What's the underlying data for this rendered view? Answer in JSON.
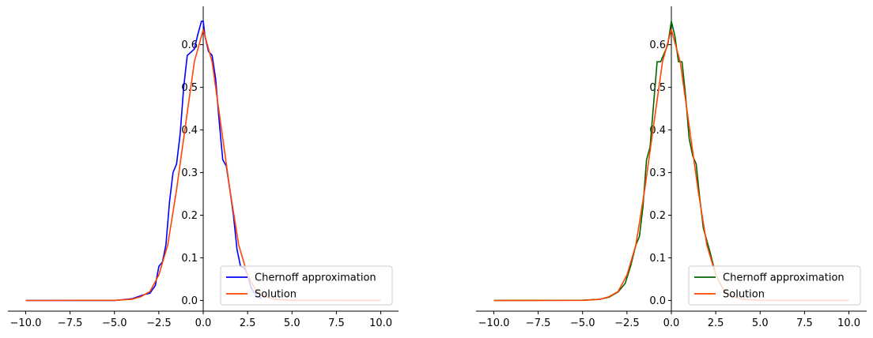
{
  "chart_data": [
    {
      "type": "line",
      "title": "",
      "xlabel": "",
      "ylabel": "",
      "xlim": [
        -11,
        11
      ],
      "ylim": [
        -0.025,
        0.69
      ],
      "xticks": [
        -10.0,
        -7.5,
        -5.0,
        -2.5,
        0.0,
        2.5,
        5.0,
        7.5,
        10.0
      ],
      "xtick_labels": [
        "−10.0",
        "−7.5",
        "−5.0",
        "−2.5",
        "0.0",
        "2.5",
        "5.0",
        "7.5",
        "10.0"
      ],
      "yticks": [
        0.0,
        0.1,
        0.2,
        0.3,
        0.4,
        0.5,
        0.6
      ],
      "ytick_labels": [
        "0.0",
        "0.1",
        "0.2",
        "0.3",
        "0.4",
        "0.5",
        "0.6"
      ],
      "grid": false,
      "legend_position": "lower-right",
      "series": [
        {
          "name": "Chernoff approximation",
          "color": "#0000ff",
          "x": [
            -10,
            -5,
            -4,
            -3.6,
            -3.3,
            -3.0,
            -2.7,
            -2.5,
            -2.3,
            -2.1,
            -1.9,
            -1.7,
            -1.5,
            -1.3,
            -1.1,
            -0.9,
            -0.7,
            -0.5,
            -0.3,
            -0.1,
            0.0,
            0.1,
            0.3,
            0.5,
            0.7,
            0.9,
            1.1,
            1.3,
            1.5,
            1.7,
            1.9,
            2.1,
            2.3,
            2.5,
            2.7,
            3.0,
            3.3
          ],
          "y": [
            0.0,
            0.0,
            0.004,
            0.01,
            0.014,
            0.017,
            0.035,
            0.08,
            0.09,
            0.13,
            0.23,
            0.3,
            0.32,
            0.39,
            0.5,
            0.575,
            0.582,
            0.59,
            0.625,
            0.655,
            0.655,
            0.62,
            0.584,
            0.575,
            0.52,
            0.42,
            0.33,
            0.315,
            0.26,
            0.2,
            0.12,
            0.08,
            0.077,
            0.06,
            0.03,
            0.01,
            0.005
          ]
        },
        {
          "name": "Solution",
          "color": "#ff4500",
          "x": [
            -10,
            -5,
            -4,
            -3.5,
            -3.0,
            -2.5,
            -2.0,
            -1.5,
            -1.0,
            -0.5,
            0.0,
            0.5,
            1.0,
            1.5,
            2.0,
            2.5,
            3.0,
            3.5,
            4,
            5,
            10
          ],
          "y": [
            0.0,
            0.0003,
            0.003,
            0.009,
            0.021,
            0.06,
            0.13,
            0.26,
            0.41,
            0.56,
            0.635,
            0.56,
            0.41,
            0.26,
            0.13,
            0.06,
            0.021,
            0.009,
            0.003,
            0.0003,
            0.0
          ]
        }
      ]
    },
    {
      "type": "line",
      "title": "",
      "xlabel": "",
      "ylabel": "",
      "xlim": [
        -11,
        11
      ],
      "ylim": [
        -0.025,
        0.69
      ],
      "xticks": [
        -10.0,
        -7.5,
        -5.0,
        -2.5,
        0.0,
        2.5,
        5.0,
        7.5,
        10.0
      ],
      "xtick_labels": [
        "−10.0",
        "−7.5",
        "−5.0",
        "−2.5",
        "0.0",
        "2.5",
        "5.0",
        "7.5",
        "10.0"
      ],
      "yticks": [
        0.0,
        0.1,
        0.2,
        0.3,
        0.4,
        0.5,
        0.6
      ],
      "ytick_labels": [
        "0.0",
        "0.1",
        "0.2",
        "0.3",
        "0.4",
        "0.5",
        "0.6"
      ],
      "grid": false,
      "legend_position": "lower-right",
      "series": [
        {
          "name": "Chernoff approximation",
          "color": "#006400",
          "x": [
            -10,
            -5,
            -4,
            -3.5,
            -3.0,
            -2.6,
            -2.3,
            -2.0,
            -1.8,
            -1.6,
            -1.4,
            -1.2,
            -1.0,
            -0.8,
            -0.6,
            -0.4,
            -0.2,
            0.0,
            0.2,
            0.4,
            0.6,
            0.8,
            1.0,
            1.2,
            1.4,
            1.6,
            1.8,
            2.0,
            2.2,
            2.5,
            3.0,
            3.5
          ],
          "y": [
            0.0,
            0.0005,
            0.003,
            0.008,
            0.02,
            0.04,
            0.08,
            0.13,
            0.15,
            0.22,
            0.33,
            0.36,
            0.46,
            0.56,
            0.56,
            0.58,
            0.6,
            0.655,
            0.62,
            0.56,
            0.56,
            0.48,
            0.38,
            0.34,
            0.32,
            0.24,
            0.17,
            0.14,
            0.11,
            0.06,
            0.02,
            0.008
          ]
        },
        {
          "name": "Solution",
          "color": "#ff4500",
          "x": [
            -10,
            -5,
            -4,
            -3.5,
            -3.0,
            -2.5,
            -2.0,
            -1.5,
            -1.0,
            -0.5,
            0.0,
            0.5,
            1.0,
            1.5,
            2.0,
            2.5,
            3.0,
            3.5,
            4,
            5,
            10
          ],
          "y": [
            0.0,
            0.0003,
            0.003,
            0.009,
            0.021,
            0.06,
            0.13,
            0.26,
            0.41,
            0.56,
            0.635,
            0.56,
            0.41,
            0.26,
            0.13,
            0.06,
            0.021,
            0.009,
            0.003,
            0.0003,
            0.0
          ]
        }
      ]
    }
  ]
}
